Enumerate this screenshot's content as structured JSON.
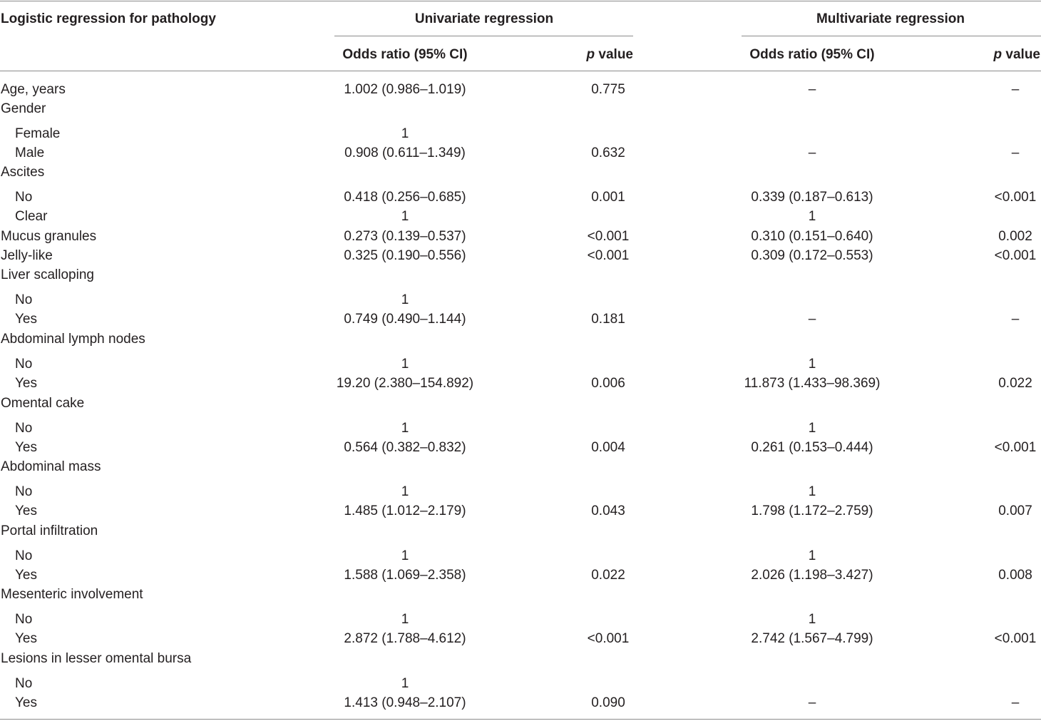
{
  "header": {
    "row_label": "Logistic regression for pathology",
    "univariate": "Univariate regression",
    "multivariate": "Multivariate regression",
    "odds_ratio": "Odds ratio (95% CI)",
    "p_italic": "p",
    "p_value": " value"
  },
  "rows": [
    {
      "label": "Age, years",
      "indent": false,
      "uni_or": "1.002 (0.986–1.019)",
      "uni_p": "0.775",
      "multi_or": "–",
      "multi_p": "–"
    },
    {
      "label": "Gender",
      "indent": false,
      "uni_or": "",
      "uni_p": "",
      "multi_or": "",
      "multi_p": ""
    },
    {
      "label": "Female",
      "indent": true,
      "uni_or": "1",
      "uni_p": "",
      "multi_or": "",
      "multi_p": ""
    },
    {
      "label": "Male",
      "indent": true,
      "uni_or": "0.908 (0.611–1.349)",
      "uni_p": "0.632",
      "multi_or": "–",
      "multi_p": "–"
    },
    {
      "label": "Ascites",
      "indent": false,
      "uni_or": "",
      "uni_p": "",
      "multi_or": "",
      "multi_p": ""
    },
    {
      "label": "No",
      "indent": true,
      "uni_or": "0.418 (0.256–0.685)",
      "uni_p": "0.001",
      "multi_or": "0.339 (0.187–0.613)",
      "multi_p": "<0.001"
    },
    {
      "label": "Clear",
      "indent": true,
      "uni_or": "1",
      "uni_p": "",
      "multi_or": "1",
      "multi_p": ""
    },
    {
      "label": "Mucus granules",
      "indent": false,
      "uni_or": "0.273 (0.139–0.537)",
      "uni_p": "<0.001",
      "multi_or": "0.310 (0.151–0.640)",
      "multi_p": "0.002"
    },
    {
      "label": "Jelly-like",
      "indent": false,
      "uni_or": "0.325 (0.190–0.556)",
      "uni_p": "<0.001",
      "multi_or": "0.309 (0.172–0.553)",
      "multi_p": "<0.001"
    },
    {
      "label": "Liver scalloping",
      "indent": false,
      "uni_or": "",
      "uni_p": "",
      "multi_or": "",
      "multi_p": ""
    },
    {
      "label": "No",
      "indent": true,
      "uni_or": "1",
      "uni_p": "",
      "multi_or": "",
      "multi_p": ""
    },
    {
      "label": "Yes",
      "indent": true,
      "uni_or": "0.749 (0.490–1.144)",
      "uni_p": "0.181",
      "multi_or": "–",
      "multi_p": "–"
    },
    {
      "label": "Abdominal lymph nodes",
      "indent": false,
      "uni_or": "",
      "uni_p": "",
      "multi_or": "",
      "multi_p": ""
    },
    {
      "label": "No",
      "indent": true,
      "uni_or": "1",
      "uni_p": "",
      "multi_or": "1",
      "multi_p": ""
    },
    {
      "label": "Yes",
      "indent": true,
      "uni_or": "19.20 (2.380–154.892)",
      "uni_p": "0.006",
      "multi_or": "11.873 (1.433–98.369)",
      "multi_p": "0.022"
    },
    {
      "label": "Omental cake",
      "indent": false,
      "uni_or": "",
      "uni_p": "",
      "multi_or": "",
      "multi_p": ""
    },
    {
      "label": "No",
      "indent": true,
      "uni_or": "1",
      "uni_p": "",
      "multi_or": "1",
      "multi_p": ""
    },
    {
      "label": "Yes",
      "indent": true,
      "uni_or": "0.564 (0.382–0.832)",
      "uni_p": "0.004",
      "multi_or": "0.261 (0.153–0.444)",
      "multi_p": "<0.001"
    },
    {
      "label": "Abdominal mass",
      "indent": false,
      "uni_or": "",
      "uni_p": "",
      "multi_or": "",
      "multi_p": ""
    },
    {
      "label": "No",
      "indent": true,
      "uni_or": "1",
      "uni_p": "",
      "multi_or": "1",
      "multi_p": ""
    },
    {
      "label": "Yes",
      "indent": true,
      "uni_or": "1.485 (1.012–2.179)",
      "uni_p": "0.043",
      "multi_or": "1.798 (1.172–2.759)",
      "multi_p": "0.007"
    },
    {
      "label": "Portal infiltration",
      "indent": false,
      "uni_or": "",
      "uni_p": "",
      "multi_or": "",
      "multi_p": ""
    },
    {
      "label": "No",
      "indent": true,
      "uni_or": "1",
      "uni_p": "",
      "multi_or": "1",
      "multi_p": ""
    },
    {
      "label": "Yes",
      "indent": true,
      "uni_or": "1.588 (1.069–2.358)",
      "uni_p": "0.022",
      "multi_or": "2.026 (1.198–3.427)",
      "multi_p": "0.008"
    },
    {
      "label": "Mesenteric involvement",
      "indent": false,
      "uni_or": "",
      "uni_p": "",
      "multi_or": "",
      "multi_p": ""
    },
    {
      "label": "No",
      "indent": true,
      "uni_or": "1",
      "uni_p": "",
      "multi_or": "1",
      "multi_p": ""
    },
    {
      "label": "Yes",
      "indent": true,
      "uni_or": "2.872 (1.788–4.612)",
      "uni_p": "<0.001",
      "multi_or": "2.742 (1.567–4.799)",
      "multi_p": "<0.001"
    },
    {
      "label": "Lesions in lesser omental bursa",
      "indent": false,
      "uni_or": "",
      "uni_p": "",
      "multi_or": "",
      "multi_p": ""
    },
    {
      "label": "No",
      "indent": true,
      "uni_or": "1",
      "uni_p": "",
      "multi_or": "",
      "multi_p": ""
    },
    {
      "label": "Yes",
      "indent": true,
      "uni_or": "1.413 (0.948–2.107)",
      "uni_p": "0.090",
      "multi_or": "–",
      "multi_p": "–"
    }
  ]
}
